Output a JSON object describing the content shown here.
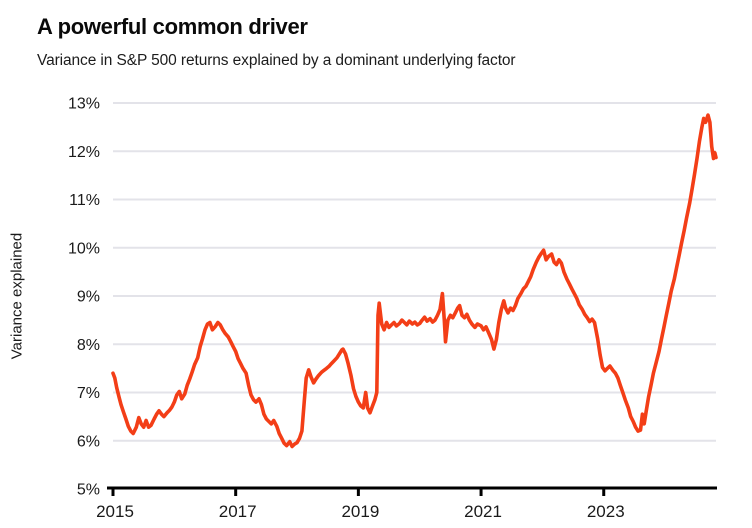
{
  "header": {
    "title": "A powerful common driver",
    "subtitle": "Variance in S&P 500 returns explained by a dominant underlying factor"
  },
  "colors": {
    "line": "#F33E17",
    "gridline": "#E3E3E9",
    "axis": "#000000",
    "text": "#1a1a1a"
  },
  "chart_data": {
    "type": "line",
    "title": "A powerful common driver",
    "subtitle": "Variance in S&P 500 returns explained by a dominant underlying factor",
    "xlabel": "",
    "ylabel": "Variance explained",
    "legend": "none",
    "grid": "horizontal",
    "xlim": [
      2015,
      2024.83
    ],
    "ylim": [
      5,
      13
    ],
    "x_ticks": [
      2015,
      2017,
      2019,
      2021,
      2023
    ],
    "x_tick_labels": [
      "2015",
      "2017",
      "2019",
      "2021",
      "2023"
    ],
    "y_ticks": [
      5,
      6,
      7,
      8,
      9,
      10,
      11,
      12,
      13
    ],
    "y_tick_labels": [
      "5%",
      "6%",
      "7%",
      "8%",
      "9%",
      "10%",
      "11%",
      "12%",
      "13%"
    ],
    "series": [
      {
        "name": "Variance in S&P 500 returns explained by a dominant underlying factor",
        "color": "#F33E17",
        "points": [
          [
            2015.0,
            7.4
          ],
          [
            2015.03,
            7.3
          ],
          [
            2015.06,
            7.1
          ],
          [
            2015.1,
            6.9
          ],
          [
            2015.13,
            6.75
          ],
          [
            2015.17,
            6.6
          ],
          [
            2015.21,
            6.45
          ],
          [
            2015.25,
            6.3
          ],
          [
            2015.29,
            6.2
          ],
          [
            2015.33,
            6.15
          ],
          [
            2015.38,
            6.28
          ],
          [
            2015.42,
            6.48
          ],
          [
            2015.46,
            6.35
          ],
          [
            2015.5,
            6.28
          ],
          [
            2015.54,
            6.42
          ],
          [
            2015.58,
            6.28
          ],
          [
            2015.62,
            6.32
          ],
          [
            2015.67,
            6.45
          ],
          [
            2015.71,
            6.55
          ],
          [
            2015.75,
            6.62
          ],
          [
            2015.79,
            6.55
          ],
          [
            2015.83,
            6.5
          ],
          [
            2015.88,
            6.58
          ],
          [
            2015.92,
            6.63
          ],
          [
            2015.96,
            6.7
          ],
          [
            2016.0,
            6.8
          ],
          [
            2016.04,
            6.95
          ],
          [
            2016.08,
            7.02
          ],
          [
            2016.12,
            6.87
          ],
          [
            2016.17,
            6.97
          ],
          [
            2016.21,
            7.15
          ],
          [
            2016.25,
            7.28
          ],
          [
            2016.29,
            7.42
          ],
          [
            2016.33,
            7.58
          ],
          [
            2016.38,
            7.72
          ],
          [
            2016.42,
            7.95
          ],
          [
            2016.46,
            8.12
          ],
          [
            2016.5,
            8.3
          ],
          [
            2016.54,
            8.42
          ],
          [
            2016.58,
            8.45
          ],
          [
            2016.62,
            8.3
          ],
          [
            2016.67,
            8.37
          ],
          [
            2016.71,
            8.45
          ],
          [
            2016.75,
            8.4
          ],
          [
            2016.79,
            8.3
          ],
          [
            2016.83,
            8.22
          ],
          [
            2016.88,
            8.15
          ],
          [
            2016.92,
            8.05
          ],
          [
            2016.96,
            7.95
          ],
          [
            2017.0,
            7.85
          ],
          [
            2017.04,
            7.7
          ],
          [
            2017.08,
            7.6
          ],
          [
            2017.12,
            7.5
          ],
          [
            2017.17,
            7.4
          ],
          [
            2017.21,
            7.15
          ],
          [
            2017.25,
            6.95
          ],
          [
            2017.29,
            6.85
          ],
          [
            2017.33,
            6.8
          ],
          [
            2017.38,
            6.87
          ],
          [
            2017.42,
            6.75
          ],
          [
            2017.46,
            6.55
          ],
          [
            2017.5,
            6.45
          ],
          [
            2017.54,
            6.4
          ],
          [
            2017.58,
            6.35
          ],
          [
            2017.62,
            6.42
          ],
          [
            2017.67,
            6.3
          ],
          [
            2017.71,
            6.15
          ],
          [
            2017.75,
            6.05
          ],
          [
            2017.79,
            5.95
          ],
          [
            2017.83,
            5.9
          ],
          [
            2017.88,
            5.98
          ],
          [
            2017.92,
            5.88
          ],
          [
            2017.96,
            5.93
          ],
          [
            2018.0,
            5.96
          ],
          [
            2018.04,
            6.05
          ],
          [
            2018.08,
            6.2
          ],
          [
            2018.12,
            6.85
          ],
          [
            2018.15,
            7.3
          ],
          [
            2018.19,
            7.47
          ],
          [
            2018.23,
            7.32
          ],
          [
            2018.27,
            7.2
          ],
          [
            2018.31,
            7.28
          ],
          [
            2018.35,
            7.35
          ],
          [
            2018.4,
            7.42
          ],
          [
            2018.44,
            7.46
          ],
          [
            2018.48,
            7.5
          ],
          [
            2018.52,
            7.54
          ],
          [
            2018.56,
            7.6
          ],
          [
            2018.6,
            7.65
          ],
          [
            2018.65,
            7.72
          ],
          [
            2018.69,
            7.8
          ],
          [
            2018.73,
            7.88
          ],
          [
            2018.75,
            7.9
          ],
          [
            2018.79,
            7.8
          ],
          [
            2018.83,
            7.62
          ],
          [
            2018.88,
            7.35
          ],
          [
            2018.92,
            7.08
          ],
          [
            2018.96,
            6.92
          ],
          [
            2019.0,
            6.8
          ],
          [
            2019.04,
            6.72
          ],
          [
            2019.08,
            6.68
          ],
          [
            2019.12,
            7.0
          ],
          [
            2019.15,
            6.68
          ],
          [
            2019.19,
            6.58
          ],
          [
            2019.23,
            6.72
          ],
          [
            2019.27,
            6.85
          ],
          [
            2019.3,
            7.0
          ],
          [
            2019.32,
            8.6
          ],
          [
            2019.34,
            8.85
          ],
          [
            2019.38,
            8.42
          ],
          [
            2019.42,
            8.3
          ],
          [
            2019.46,
            8.45
          ],
          [
            2019.5,
            8.35
          ],
          [
            2019.54,
            8.4
          ],
          [
            2019.58,
            8.45
          ],
          [
            2019.62,
            8.38
          ],
          [
            2019.67,
            8.43
          ],
          [
            2019.71,
            8.5
          ],
          [
            2019.75,
            8.45
          ],
          [
            2019.79,
            8.4
          ],
          [
            2019.83,
            8.48
          ],
          [
            2019.88,
            8.42
          ],
          [
            2019.92,
            8.46
          ],
          [
            2019.96,
            8.4
          ],
          [
            2020.0,
            8.43
          ],
          [
            2020.04,
            8.5
          ],
          [
            2020.08,
            8.56
          ],
          [
            2020.12,
            8.48
          ],
          [
            2020.17,
            8.53
          ],
          [
            2020.21,
            8.46
          ],
          [
            2020.25,
            8.5
          ],
          [
            2020.29,
            8.6
          ],
          [
            2020.33,
            8.72
          ],
          [
            2020.37,
            9.05
          ],
          [
            2020.4,
            8.5
          ],
          [
            2020.42,
            8.05
          ],
          [
            2020.46,
            8.5
          ],
          [
            2020.5,
            8.6
          ],
          [
            2020.54,
            8.55
          ],
          [
            2020.58,
            8.65
          ],
          [
            2020.62,
            8.75
          ],
          [
            2020.65,
            8.8
          ],
          [
            2020.69,
            8.6
          ],
          [
            2020.73,
            8.55
          ],
          [
            2020.77,
            8.62
          ],
          [
            2020.81,
            8.5
          ],
          [
            2020.85,
            8.42
          ],
          [
            2020.9,
            8.35
          ],
          [
            2020.94,
            8.42
          ],
          [
            2021.0,
            8.38
          ],
          [
            2021.04,
            8.3
          ],
          [
            2021.08,
            8.36
          ],
          [
            2021.12,
            8.25
          ],
          [
            2021.17,
            8.1
          ],
          [
            2021.21,
            7.9
          ],
          [
            2021.25,
            8.1
          ],
          [
            2021.29,
            8.45
          ],
          [
            2021.33,
            8.72
          ],
          [
            2021.37,
            8.9
          ],
          [
            2021.4,
            8.75
          ],
          [
            2021.44,
            8.65
          ],
          [
            2021.48,
            8.75
          ],
          [
            2021.52,
            8.7
          ],
          [
            2021.56,
            8.8
          ],
          [
            2021.6,
            8.95
          ],
          [
            2021.65,
            9.05
          ],
          [
            2021.69,
            9.15
          ],
          [
            2021.73,
            9.2
          ],
          [
            2021.77,
            9.3
          ],
          [
            2021.81,
            9.4
          ],
          [
            2021.85,
            9.55
          ],
          [
            2021.9,
            9.7
          ],
          [
            2021.94,
            9.8
          ],
          [
            2021.98,
            9.88
          ],
          [
            2022.02,
            9.95
          ],
          [
            2022.06,
            9.75
          ],
          [
            2022.1,
            9.82
          ],
          [
            2022.15,
            9.87
          ],
          [
            2022.19,
            9.7
          ],
          [
            2022.23,
            9.65
          ],
          [
            2022.27,
            9.75
          ],
          [
            2022.31,
            9.68
          ],
          [
            2022.35,
            9.5
          ],
          [
            2022.4,
            9.35
          ],
          [
            2022.44,
            9.25
          ],
          [
            2022.48,
            9.15
          ],
          [
            2022.52,
            9.05
          ],
          [
            2022.56,
            8.95
          ],
          [
            2022.6,
            8.82
          ],
          [
            2022.65,
            8.72
          ],
          [
            2022.69,
            8.62
          ],
          [
            2022.73,
            8.55
          ],
          [
            2022.77,
            8.47
          ],
          [
            2022.81,
            8.52
          ],
          [
            2022.85,
            8.45
          ],
          [
            2022.9,
            8.12
          ],
          [
            2022.94,
            7.78
          ],
          [
            2022.98,
            7.52
          ],
          [
            2023.02,
            7.45
          ],
          [
            2023.06,
            7.5
          ],
          [
            2023.1,
            7.55
          ],
          [
            2023.15,
            7.46
          ],
          [
            2023.19,
            7.4
          ],
          [
            2023.23,
            7.3
          ],
          [
            2023.27,
            7.15
          ],
          [
            2023.31,
            7.0
          ],
          [
            2023.35,
            6.85
          ],
          [
            2023.4,
            6.68
          ],
          [
            2023.44,
            6.5
          ],
          [
            2023.48,
            6.4
          ],
          [
            2023.52,
            6.28
          ],
          [
            2023.56,
            6.2
          ],
          [
            2023.6,
            6.22
          ],
          [
            2023.63,
            6.55
          ],
          [
            2023.66,
            6.35
          ],
          [
            2023.69,
            6.6
          ],
          [
            2023.73,
            6.9
          ],
          [
            2023.77,
            7.15
          ],
          [
            2023.81,
            7.4
          ],
          [
            2023.85,
            7.6
          ],
          [
            2023.9,
            7.85
          ],
          [
            2023.94,
            8.1
          ],
          [
            2023.98,
            8.35
          ],
          [
            2024.02,
            8.6
          ],
          [
            2024.06,
            8.85
          ],
          [
            2024.1,
            9.1
          ],
          [
            2024.15,
            9.35
          ],
          [
            2024.19,
            9.6
          ],
          [
            2024.23,
            9.85
          ],
          [
            2024.27,
            10.1
          ],
          [
            2024.31,
            10.35
          ],
          [
            2024.35,
            10.62
          ],
          [
            2024.4,
            10.92
          ],
          [
            2024.44,
            11.22
          ],
          [
            2024.48,
            11.52
          ],
          [
            2024.52,
            11.85
          ],
          [
            2024.56,
            12.2
          ],
          [
            2024.6,
            12.5
          ],
          [
            2024.63,
            12.68
          ],
          [
            2024.66,
            12.6
          ],
          [
            2024.7,
            12.75
          ],
          [
            2024.73,
            12.6
          ],
          [
            2024.76,
            12.1
          ],
          [
            2024.79,
            11.85
          ],
          [
            2024.81,
            11.97
          ],
          [
            2024.83,
            11.87
          ]
        ]
      }
    ]
  }
}
